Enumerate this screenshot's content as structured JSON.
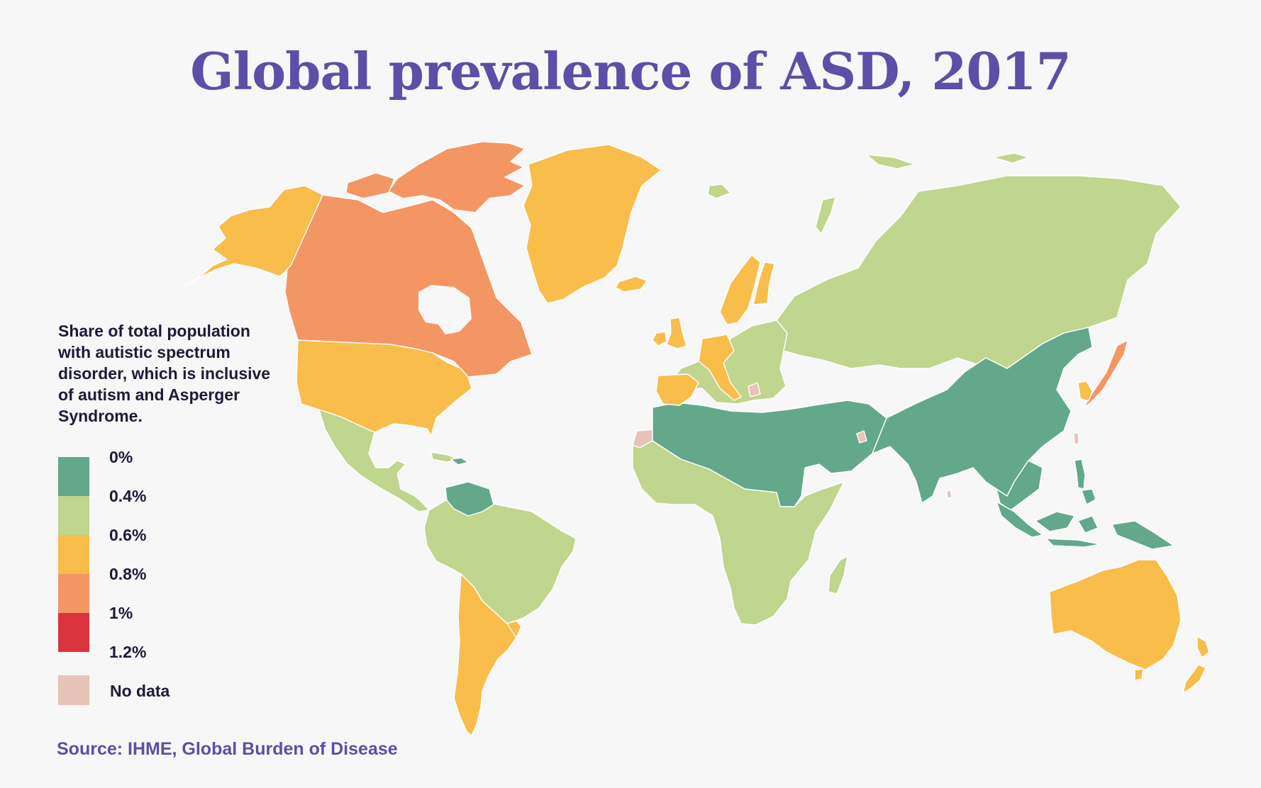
{
  "title": "Global prevalence of ASD, 2017",
  "legend": {
    "description": "Share of total population with autistic spectrum disorder, which is inclusive of autism and Asperger Syndrome.",
    "bins": [
      {
        "color": "#63a88b"
      },
      {
        "color": "#c0d58d"
      },
      {
        "color": "#f9bd4c"
      },
      {
        "color": "#f39664"
      },
      {
        "color": "#da333e"
      }
    ],
    "tick_labels": [
      "0%",
      "0.4%",
      "0.6%",
      "0.8%",
      "1%",
      "1.2%"
    ],
    "no_data": {
      "label": "No data",
      "color": "#e8c3b7"
    }
  },
  "source": "Source: IHME, Global Burden of Disease",
  "colors": {
    "background": "#f7f7f7",
    "title": "#5b4fa8",
    "border": "#ffffff",
    "under_0_4": "#63a88b",
    "from_0_4_to_0_6": "#c0d58d",
    "from_0_6_to_0_8": "#f9bd4c",
    "from_0_8_to_1": "#f39664",
    "from_1_to_1_2": "#da333e",
    "no_data": "#e8c3b7"
  },
  "map_regions": [
    {
      "id": "alaska",
      "bin": "0.6-0.8%"
    },
    {
      "id": "canada",
      "bin": "0.8-1%"
    },
    {
      "id": "canadian-arctic-islands",
      "bin": "0.8-1%"
    },
    {
      "id": "greenland",
      "bin": "0.6-0.8%"
    },
    {
      "id": "iceland",
      "bin": "0.6-0.8%"
    },
    {
      "id": "usa",
      "bin": "0.6-0.8%"
    },
    {
      "id": "mexico-central-america",
      "bin": "0.4-0.6%"
    },
    {
      "id": "venezuela",
      "bin": "0-0.4%"
    },
    {
      "id": "south-america-north",
      "bin": "0.4-0.6%"
    },
    {
      "id": "argentina-chile",
      "bin": "0.6-0.8%"
    },
    {
      "id": "western-sahara",
      "bin": "no data"
    },
    {
      "id": "north-africa-middle-east",
      "bin": "0-0.4%"
    },
    {
      "id": "sub-saharan-africa",
      "bin": "0.4-0.6%"
    },
    {
      "id": "madagascar",
      "bin": "0.4-0.6%"
    },
    {
      "id": "europe",
      "bin": "0.4-0.6%"
    },
    {
      "id": "uk-ireland",
      "bin": "0.6-0.8%"
    },
    {
      "id": "iberia",
      "bin": "0.6-0.8%"
    },
    {
      "id": "central-europe-italy",
      "bin": "0.6-0.8%"
    },
    {
      "id": "sweden-finland",
      "bin": "0.6-0.8%"
    },
    {
      "id": "russia-central-asia",
      "bin": "0.4-0.6%"
    },
    {
      "id": "china-south-asia",
      "bin": "0-0.4%"
    },
    {
      "id": "japan",
      "bin": "0.8-1%"
    },
    {
      "id": "korea",
      "bin": "0.6-0.8%"
    },
    {
      "id": "indonesia",
      "bin": "0-0.4%"
    },
    {
      "id": "philippines",
      "bin": "0-0.4%"
    },
    {
      "id": "australia",
      "bin": "0.6-0.8%"
    },
    {
      "id": "new-zealand",
      "bin": "0.6-0.8%"
    }
  ]
}
